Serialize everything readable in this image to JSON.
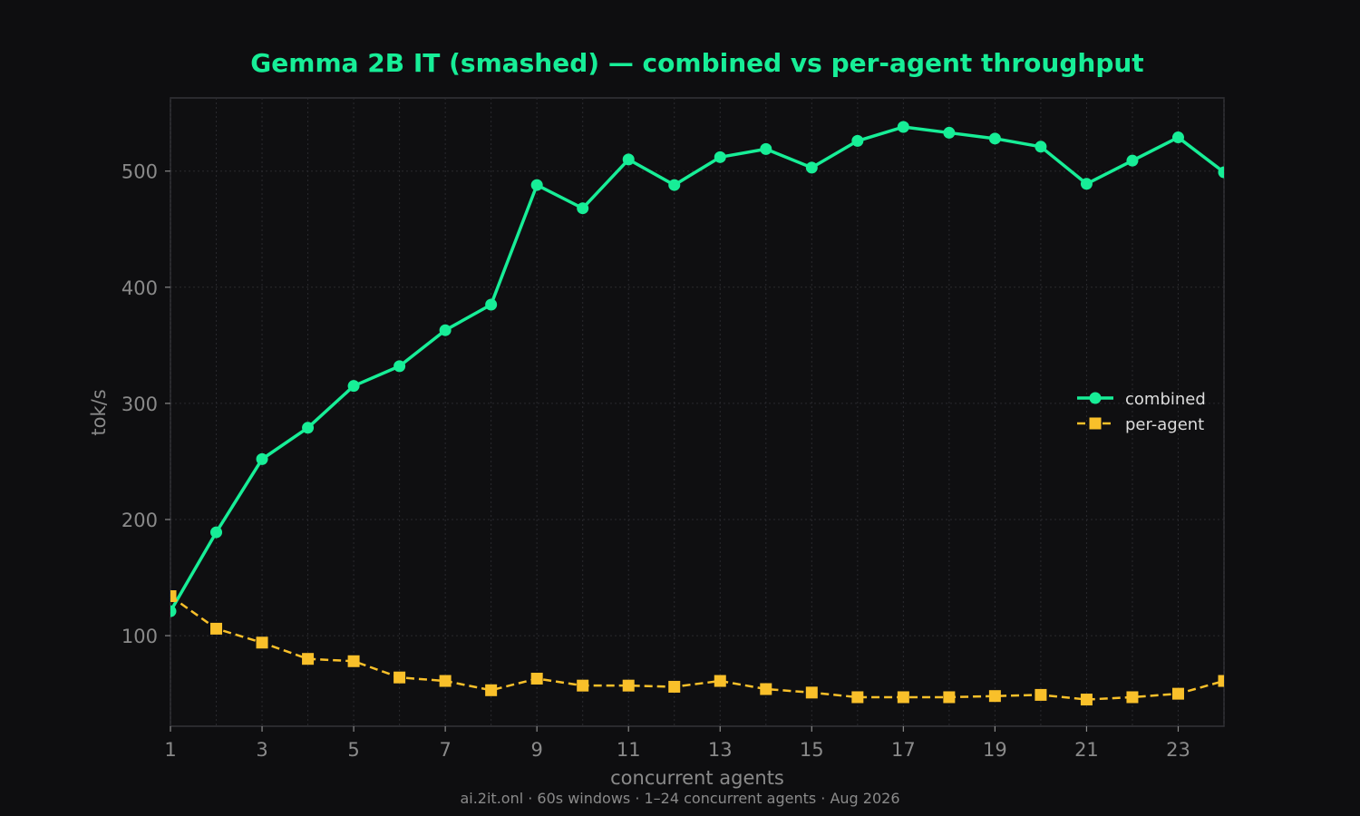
{
  "chart_data": {
    "type": "line",
    "title": "Gemma 2B IT (smashed) — combined vs per-agent throughput",
    "xlabel": "concurrent agents",
    "ylabel": "tok/s",
    "footer": "ai.2it.onl · 60s windows · 1–24 concurrent agents · Aug 2026",
    "x": [
      1,
      2,
      3,
      4,
      5,
      6,
      7,
      8,
      9,
      10,
      11,
      12,
      13,
      14,
      15,
      16,
      17,
      18,
      19,
      20,
      21,
      22,
      23,
      24
    ],
    "xlim": [
      1,
      24
    ],
    "ylim": [
      22,
      563
    ],
    "xticks": [
      1,
      3,
      5,
      7,
      9,
      11,
      13,
      15,
      17,
      19,
      21,
      23
    ],
    "yticks": [
      100,
      200,
      300,
      400,
      500
    ],
    "grid": true,
    "legend_position": "right",
    "series": [
      {
        "name": "combined",
        "color": "#17ee97",
        "marker": "circle",
        "linestyle": "solid",
        "values": [
          121,
          189,
          252,
          279,
          315,
          332,
          363,
          385,
          488,
          468,
          510,
          488,
          512,
          519,
          503,
          526,
          538,
          533,
          528,
          521,
          489,
          509,
          529,
          499
        ]
      },
      {
        "name": "per-agent",
        "color": "#f9c02a",
        "marker": "square",
        "linestyle": "dashed",
        "values": [
          134,
          106,
          94,
          80,
          78,
          64,
          61,
          53,
          63,
          57,
          57,
          56,
          61,
          54,
          51,
          47,
          47,
          47,
          48,
          49,
          45,
          47,
          50,
          61
        ]
      }
    ]
  }
}
